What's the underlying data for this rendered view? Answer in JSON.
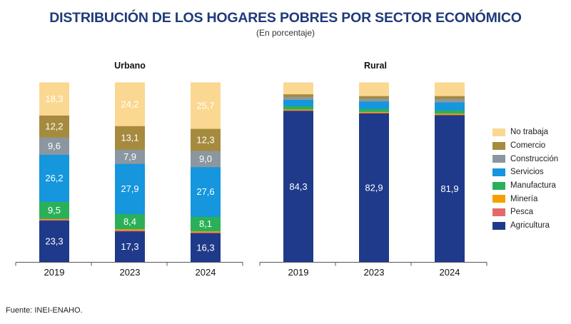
{
  "title": "DISTRIBUCIÓN DE LOS HOGARES POBRES POR SECTOR ECONÓMICO",
  "subtitle": "(En porcentaje)",
  "source": "Fuente: INEI-ENAHO.",
  "chart_data": {
    "type": "bar",
    "stacked": true,
    "ylim": [
      0,
      100
    ],
    "grid": false,
    "legend_position": "right",
    "sectors": [
      "Agricultura",
      "Pesca",
      "Minería",
      "Manufactura",
      "Servicios",
      "Construcción",
      "Comercio",
      "No trabaja"
    ],
    "colors": {
      "Agricultura": "#1f3a8a",
      "Pesca": "#e46a6a",
      "Minería": "#f5a000",
      "Manufactura": "#2bb05a",
      "Servicios": "#1596dd",
      "Construcción": "#8b97a0",
      "Comercio": "#a68a3e",
      "No trabaja": "#fbd891"
    },
    "legend_order": [
      "No trabaja",
      "Comercio",
      "Construcción",
      "Servicios",
      "Manufactura",
      "Minería",
      "Pesca",
      "Agricultura"
    ],
    "panels": [
      {
        "name": "Urbano",
        "categories": [
          "2019",
          "2023",
          "2024"
        ],
        "series": [
          {
            "name": "Agricultura",
            "values": [
              23.3,
              17.3,
              16.3
            ],
            "labels": [
              "23,3",
              "17,3",
              "16,3"
            ]
          },
          {
            "name": "Pesca",
            "values": [
              0.5,
              0.5,
              0.4
            ],
            "labels": [
              "",
              "",
              ""
            ]
          },
          {
            "name": "Minería",
            "values": [
              0.4,
              0.7,
              0.6
            ],
            "labels": [
              "",
              "",
              ""
            ]
          },
          {
            "name": "Manufactura",
            "values": [
              9.5,
              8.4,
              8.1
            ],
            "labels": [
              "9,5",
              "8,4",
              "8,1"
            ]
          },
          {
            "name": "Servicios",
            "values": [
              26.2,
              27.9,
              27.6
            ],
            "labels": [
              "26,2",
              "27,9",
              "27,6"
            ]
          },
          {
            "name": "Construcción",
            "values": [
              9.6,
              7.9,
              9.0
            ],
            "labels": [
              "9,6",
              "7,9",
              "9,0"
            ]
          },
          {
            "name": "Comercio",
            "values": [
              12.2,
              13.1,
              12.3
            ],
            "labels": [
              "12,2",
              "13,1",
              "12,3"
            ]
          },
          {
            "name": "No trabaja",
            "values": [
              18.3,
              24.2,
              25.7
            ],
            "labels": [
              "18,3",
              "24,2",
              "25,7"
            ]
          }
        ]
      },
      {
        "name": "Rural",
        "categories": [
          "2019",
          "2023",
          "2024"
        ],
        "series": [
          {
            "name": "Agricultura",
            "values": [
              84.3,
              82.9,
              81.9
            ],
            "labels": [
              "84,3",
              "82,9",
              "81,9"
            ]
          },
          {
            "name": "Pesca",
            "values": [
              0.3,
              0.3,
              0.3
            ],
            "labels": [
              "",
              "",
              ""
            ]
          },
          {
            "name": "Minería",
            "values": [
              0.5,
              0.5,
              0.6
            ],
            "labels": [
              "",
              "",
              ""
            ]
          },
          {
            "name": "Manufactura",
            "values": [
              1.8,
              1.6,
              1.7
            ],
            "labels": [
              "",
              "",
              ""
            ]
          },
          {
            "name": "Servicios",
            "values": [
              3.5,
              4.2,
              4.5
            ],
            "labels": [
              "",
              "",
              ""
            ]
          },
          {
            "name": "Construcción",
            "values": [
              1.6,
              1.6,
              1.9
            ],
            "labels": [
              "",
              "",
              ""
            ]
          },
          {
            "name": "Comercio",
            "values": [
              1.5,
              1.4,
              1.6
            ],
            "labels": [
              "",
              "",
              ""
            ]
          },
          {
            "name": "No trabaja",
            "values": [
              6.5,
              7.5,
              7.5
            ],
            "labels": [
              "",
              "",
              ""
            ]
          }
        ]
      }
    ]
  }
}
